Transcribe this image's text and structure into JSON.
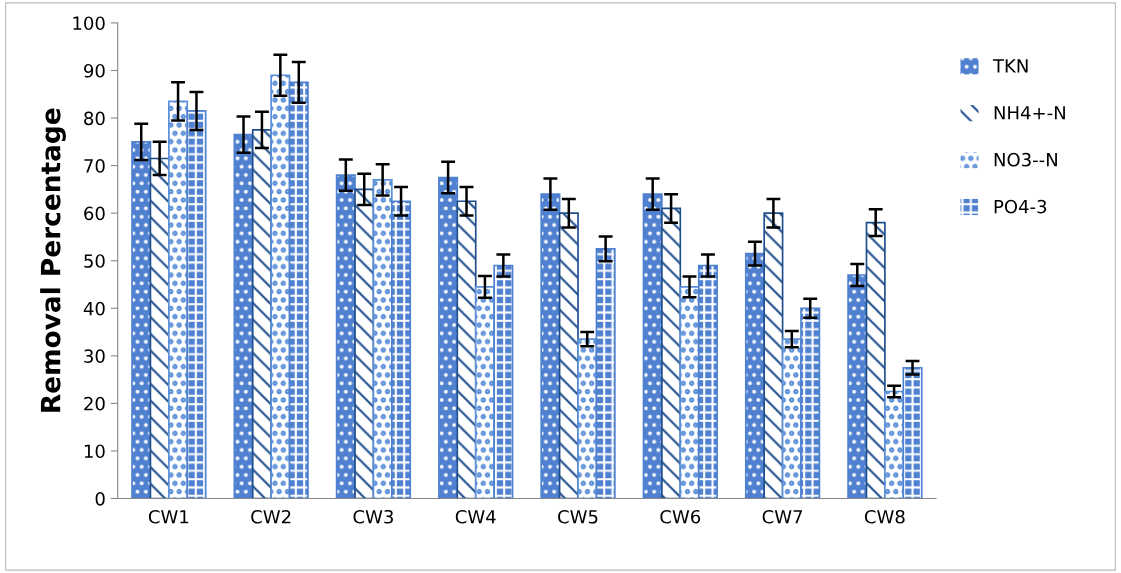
{
  "chart_data": {
    "type": "bar",
    "ylabel": "Removal Percentage",
    "categories": [
      "CW1",
      "CW2",
      "CW3",
      "CW4",
      "CW5",
      "CW6",
      "CW7",
      "CW8"
    ],
    "series": [
      {
        "name": "TKN",
        "color": "#4f81d0",
        "values": [
          75,
          76.5,
          68,
          67.5,
          64,
          64,
          51.5,
          47
        ],
        "errors": [
          3.8,
          3.8,
          3.3,
          3.3,
          3.3,
          3.3,
          2.5,
          2.3
        ]
      },
      {
        "name": "NH4+-N",
        "color": "#1f4e8c",
        "values": [
          71.5,
          77.5,
          65,
          62.5,
          60,
          61,
          60,
          58
        ],
        "errors": [
          3.5,
          3.8,
          3.3,
          3,
          3,
          3,
          3,
          2.8
        ]
      },
      {
        "name": "NO3--N",
        "color": "#5b8fd8",
        "values": [
          83.5,
          89,
          67,
          44.5,
          33.5,
          44.5,
          33.5,
          22.5
        ],
        "errors": [
          4,
          4.3,
          3.3,
          2.3,
          1.5,
          2.2,
          1.7,
          1.2
        ]
      },
      {
        "name": "PO4-3",
        "color": "#4f81d0",
        "values": [
          81.5,
          87.5,
          62.5,
          49,
          52.5,
          49,
          40,
          27.5
        ],
        "errors": [
          4,
          4.3,
          3,
          2.3,
          2.6,
          2.3,
          2,
          1.4
        ]
      }
    ],
    "ylim": [
      0,
      100
    ],
    "yticks": [
      0,
      10,
      20,
      30,
      40,
      50,
      60,
      70,
      80,
      90,
      100
    ],
    "grid": false,
    "legend": "top right"
  }
}
